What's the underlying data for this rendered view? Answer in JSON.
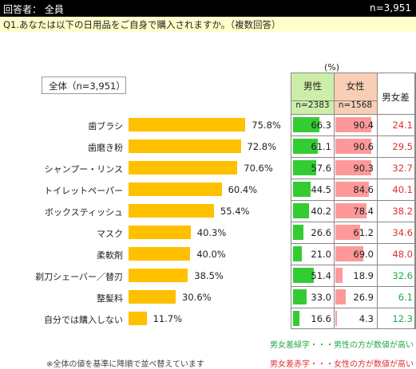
{
  "header": {
    "respondents": "回答者： 全員",
    "n_total": "n=3,951",
    "question": "Q1.あなたは以下の日用品をご自身で購入されますか。（複数回答）"
  },
  "total_label": "全体（n=3,951）",
  "unit": "(%)",
  "columns": {
    "male": "男性",
    "male_n": "n=2383",
    "female": "女性",
    "female_n": "n=1568",
    "diff": "男女差"
  },
  "colors": {
    "total_bar": "#ffc000",
    "male_bar": "#33cc33",
    "female_bar": "#ff9999",
    "diff_green": "#22aa44",
    "diff_red": "#e03030"
  },
  "chart_data": {
    "type": "bar",
    "categories": [
      "歯ブラシ",
      "歯磨き粉",
      "シャンプー・リンス",
      "トイレットペーパー",
      "ボックスティッシュ",
      "マスク",
      "柔軟剤",
      "剃刀シェーバー／替刃",
      "整髪料",
      "自分では購入しない"
    ],
    "total": [
      "75.8%",
      "72.8%",
      "70.6%",
      "60.4%",
      "55.4%",
      "40.3%",
      "40.0%",
      "38.5%",
      "30.6%",
      "11.7%"
    ],
    "male": [
      "66.3",
      "61.1",
      "57.6",
      "44.5",
      "40.2",
      "26.6",
      "21.0",
      "51.4",
      "33.0",
      "16.6"
    ],
    "female": [
      "90.4",
      "90.6",
      "90.3",
      "84.6",
      "78.4",
      "61.2",
      "69.0",
      "18.9",
      "26.9",
      "4.3"
    ],
    "diff": [
      "24.1",
      "29.5",
      "32.7",
      "40.1",
      "38.2",
      "34.6",
      "48.0",
      "32.6",
      "6.1",
      "12.3"
    ],
    "diff_color": [
      "red",
      "red",
      "red",
      "red",
      "red",
      "red",
      "red",
      "green",
      "green",
      "green"
    ],
    "xlim": [
      0,
      100
    ]
  },
  "legend": {
    "green": "男女差緑字・・・男性の方が数値が高い",
    "red": "男女差赤字・・・女性の方が数値が高い"
  },
  "note": "※全体の値を基準に降順で並べ替えています"
}
